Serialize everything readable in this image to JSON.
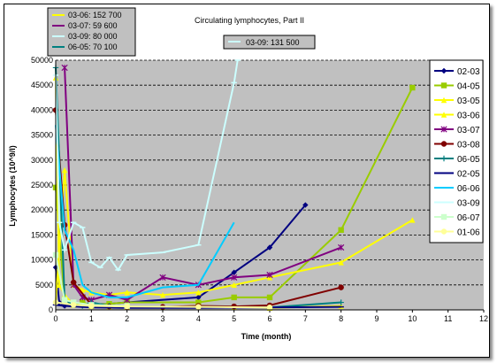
{
  "chart_data": {
    "type": "line",
    "title": "Circulating lymphocytes, Part II",
    "xlabel": "Time (month)",
    "ylabel": "Lymphocytes (10^9/l)",
    "xlim": [
      0,
      12
    ],
    "ylim": [
      0,
      50000
    ],
    "x_ticks": [
      "0",
      "1",
      "2",
      "3",
      "4",
      "5",
      "6",
      "7",
      "8",
      "9",
      "10",
      "11",
      "12"
    ],
    "y_ticks": [
      "0",
      "5000",
      "10000",
      "15000",
      "20000",
      "25000",
      "30000",
      "35000",
      "40000",
      "45000",
      "50000"
    ],
    "grid": "horizontal",
    "legend_position": "right",
    "plot_background": "#c0c0c0",
    "series": [
      {
        "name": "02-03",
        "color": "#000080",
        "marker": "diamond",
        "x": [
          0,
          0.1,
          0.25,
          0.5,
          0.75,
          1,
          1.5,
          2,
          4,
          5,
          6,
          7
        ],
        "y": [
          8500,
          1500,
          800,
          1000,
          900,
          1100,
          1200,
          1500,
          2500,
          7500,
          12500,
          21000
        ]
      },
      {
        "name": "04-05",
        "color": "#99cc00",
        "marker": "square",
        "x": [
          0,
          0.25,
          0.5,
          0.75,
          1,
          1.5,
          2,
          4,
          5,
          6,
          8,
          10
        ],
        "y": [
          24500,
          2000,
          1000,
          1500,
          1000,
          1200,
          1500,
          1500,
          2500,
          2500,
          16000,
          44500
        ]
      },
      {
        "name": "03-05",
        "color": "#ffff00",
        "marker": "triangle",
        "x": [
          0,
          0.1,
          0.25,
          0.5,
          1,
          1.5,
          2,
          3,
          4,
          5,
          6,
          8
        ],
        "y": [
          46500,
          5000,
          3000,
          1000,
          800,
          700,
          600,
          600,
          800,
          600,
          400,
          800
        ]
      },
      {
        "name": "03-06",
        "color": "#ffff00",
        "marker": "triangle",
        "x": [
          0,
          0.25,
          0.5,
          0.75,
          1,
          1.5,
          2,
          3,
          4,
          5,
          6,
          8,
          10
        ],
        "y": [
          1500,
          28000,
          5000,
          4000,
          3500,
          3000,
          3500,
          3000,
          3500,
          5000,
          6500,
          9500,
          18000
        ]
      },
      {
        "name": "03-07",
        "color": "#800080",
        "marker": "star",
        "x": [
          0.25,
          0.5,
          0.75,
          1,
          1.5,
          2,
          3,
          4,
          5,
          6,
          8
        ],
        "y": [
          48500,
          5000,
          2500,
          2000,
          3000,
          2000,
          6500,
          5000,
          6500,
          7000,
          12500
        ]
      },
      {
        "name": "03-08",
        "color": "#800000",
        "marker": "circle",
        "x": [
          0,
          0.25,
          0.5,
          1,
          1.5,
          2,
          3,
          4,
          5,
          6,
          8
        ],
        "y": [
          40000,
          17000,
          5500,
          1000,
          700,
          600,
          600,
          800,
          700,
          900,
          4500
        ]
      },
      {
        "name": "06-05",
        "color": "#008080",
        "marker": "plus",
        "x": [
          0,
          0.25,
          0.5,
          0.75,
          1,
          1.5,
          2,
          4,
          6,
          8
        ],
        "y": [
          48500,
          2000,
          1000,
          800,
          1500,
          800,
          700,
          600,
          500,
          1500
        ]
      },
      {
        "name": "02-05",
        "color": "#000080",
        "marker": "dash",
        "x": [
          0,
          0.25,
          0.5,
          1,
          2,
          4,
          6,
          8
        ],
        "y": [
          1000,
          800,
          700,
          500,
          400,
          400,
          500,
          600
        ]
      },
      {
        "name": "06-06",
        "color": "#00ccff",
        "marker": "none",
        "x": [
          0,
          0.25,
          0.5,
          0.75,
          1,
          1.5,
          2,
          3,
          4,
          5
        ],
        "y": [
          37000,
          16000,
          12000,
          5000,
          3500,
          2500,
          2500,
          4500,
          5000,
          17500
        ]
      },
      {
        "name": "03-09",
        "color": "#ccffff",
        "marker": "dash",
        "x": [
          0,
          0.1,
          0.25,
          0.5,
          0.75,
          1,
          1.25,
          1.5,
          1.75,
          2,
          3,
          4,
          5,
          5.1
        ],
        "y": [
          47000,
          17500,
          12000,
          17500,
          16500,
          9500,
          8500,
          10500,
          8000,
          11000,
          11500,
          13000,
          45500,
          50000
        ]
      },
      {
        "name": "06-07",
        "color": "#ccffcc",
        "marker": "square",
        "x": [
          0,
          0.25,
          0.5,
          1,
          2
        ],
        "y": [
          11000,
          2000,
          1500,
          1000,
          800
        ]
      },
      {
        "name": "01-06",
        "color": "#ffff99",
        "marker": "circle",
        "x": [
          0,
          0.5,
          1,
          2,
          4,
          6
        ],
        "y": [
          1500,
          1000,
          800,
          700,
          600,
          500
        ]
      }
    ],
    "annotations": [
      {
        "label": "03-06: 152 700",
        "color": "#ffff00"
      },
      {
        "label": "03-07: 59 600",
        "color": "#800080"
      },
      {
        "label": "03-09: 80 000",
        "color": "#ccffff"
      },
      {
        "label": "06-05: 70 100",
        "color": "#008080"
      },
      {
        "label": "03-09: 131 500",
        "color": "#ccffff"
      }
    ]
  }
}
